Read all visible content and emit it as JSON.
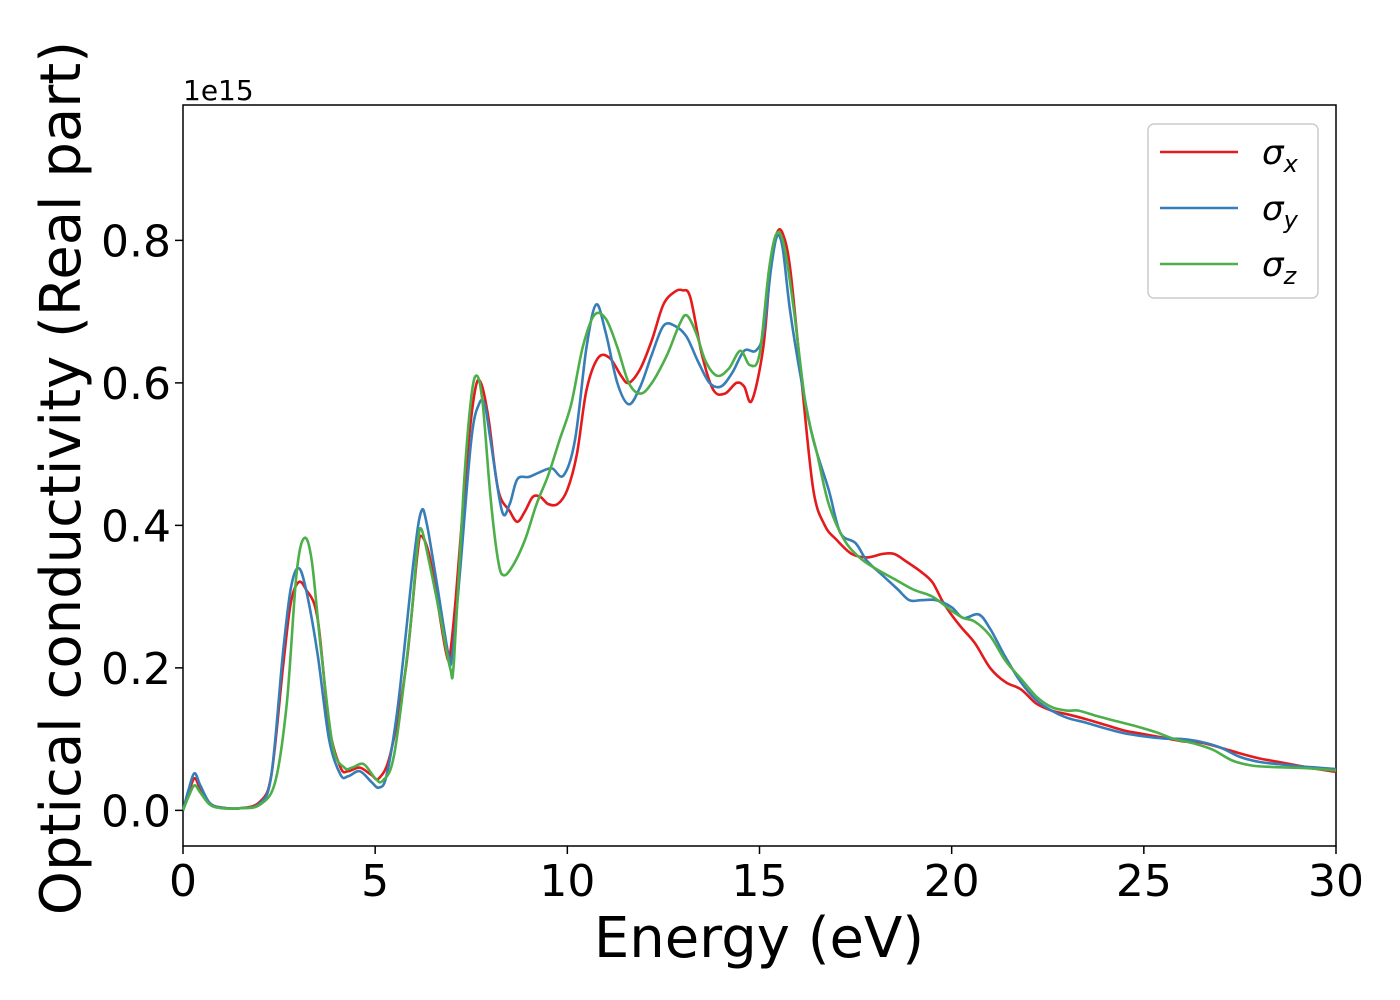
{
  "chart_data": {
    "type": "line",
    "xlabel": "Energy (eV)",
    "ylabel": "Optical conductivity (Real part)",
    "y_offset_label": "1e15",
    "xlim": [
      0,
      30
    ],
    "ylim": [
      -0.05,
      0.99
    ],
    "x_ticks": [
      "0",
      "5",
      "10",
      "15",
      "20",
      "25",
      "30"
    ],
    "y_ticks": [
      "0.0",
      "0.2",
      "0.4",
      "0.6",
      "0.8"
    ],
    "grid": false,
    "legend_position": "top-right",
    "series": [
      {
        "name": "σx",
        "symbol": "σ",
        "sub": "x",
        "color": "#e41a1c",
        "points": [
          [
            0,
            0.0
          ],
          [
            0.15,
            0.025
          ],
          [
            0.3,
            0.045
          ],
          [
            0.45,
            0.03
          ],
          [
            0.7,
            0.01
          ],
          [
            1,
            0.004
          ],
          [
            1.5,
            0.003
          ],
          [
            2,
            0.012
          ],
          [
            2.3,
            0.05
          ],
          [
            2.6,
            0.2
          ],
          [
            2.8,
            0.29
          ],
          [
            3.0,
            0.32
          ],
          [
            3.2,
            0.31
          ],
          [
            3.5,
            0.27
          ],
          [
            3.8,
            0.12
          ],
          [
            4.1,
            0.06
          ],
          [
            4.3,
            0.055
          ],
          [
            4.6,
            0.06
          ],
          [
            4.9,
            0.05
          ],
          [
            5.1,
            0.045
          ],
          [
            5.4,
            0.08
          ],
          [
            5.8,
            0.2
          ],
          [
            6.1,
            0.36
          ],
          [
            6.2,
            0.385
          ],
          [
            6.4,
            0.36
          ],
          [
            6.6,
            0.3
          ],
          [
            6.85,
            0.22
          ],
          [
            6.95,
            0.22
          ],
          [
            7.1,
            0.3
          ],
          [
            7.4,
            0.5
          ],
          [
            7.6,
            0.59
          ],
          [
            7.75,
            0.6
          ],
          [
            7.95,
            0.55
          ],
          [
            8.2,
            0.45
          ],
          [
            8.5,
            0.42
          ],
          [
            8.7,
            0.405
          ],
          [
            8.9,
            0.42
          ],
          [
            9.1,
            0.44
          ],
          [
            9.3,
            0.44
          ],
          [
            9.5,
            0.43
          ],
          [
            9.75,
            0.43
          ],
          [
            10,
            0.45
          ],
          [
            10.25,
            0.5
          ],
          [
            10.5,
            0.59
          ],
          [
            10.8,
            0.635
          ],
          [
            11.1,
            0.635
          ],
          [
            11.4,
            0.61
          ],
          [
            11.6,
            0.6
          ],
          [
            11.9,
            0.62
          ],
          [
            12.2,
            0.66
          ],
          [
            12.5,
            0.71
          ],
          [
            12.8,
            0.728
          ],
          [
            13.0,
            0.73
          ],
          [
            13.2,
            0.72
          ],
          [
            13.5,
            0.64
          ],
          [
            13.8,
            0.59
          ],
          [
            14.1,
            0.585
          ],
          [
            14.4,
            0.6
          ],
          [
            14.6,
            0.595
          ],
          [
            14.8,
            0.575
          ],
          [
            15.1,
            0.65
          ],
          [
            15.3,
            0.77
          ],
          [
            15.45,
            0.81
          ],
          [
            15.6,
            0.81
          ],
          [
            15.8,
            0.76
          ],
          [
            16.1,
            0.6
          ],
          [
            16.4,
            0.45
          ],
          [
            16.7,
            0.4
          ],
          [
            17,
            0.38
          ],
          [
            17.4,
            0.36
          ],
          [
            17.8,
            0.355
          ],
          [
            18.2,
            0.36
          ],
          [
            18.5,
            0.36
          ],
          [
            18.8,
            0.35
          ],
          [
            19.2,
            0.335
          ],
          [
            19.5,
            0.32
          ],
          [
            19.8,
            0.29
          ],
          [
            20.2,
            0.26
          ],
          [
            20.6,
            0.235
          ],
          [
            21,
            0.2
          ],
          [
            21.4,
            0.18
          ],
          [
            21.8,
            0.17
          ],
          [
            22.2,
            0.15
          ],
          [
            22.6,
            0.14
          ],
          [
            23,
            0.135
          ],
          [
            23.5,
            0.128
          ],
          [
            24,
            0.12
          ],
          [
            24.5,
            0.112
          ],
          [
            25,
            0.107
          ],
          [
            25.5,
            0.102
          ],
          [
            26,
            0.097
          ],
          [
            26.5,
            0.095
          ],
          [
            27,
            0.088
          ],
          [
            27.5,
            0.08
          ],
          [
            28,
            0.073
          ],
          [
            28.5,
            0.068
          ],
          [
            29,
            0.063
          ],
          [
            29.5,
            0.058
          ],
          [
            30,
            0.054
          ]
        ]
      },
      {
        "name": "σy",
        "symbol": "σ",
        "sub": "y",
        "color": "#377eb8",
        "points": [
          [
            0,
            0.0
          ],
          [
            0.15,
            0.03
          ],
          [
            0.3,
            0.052
          ],
          [
            0.45,
            0.035
          ],
          [
            0.7,
            0.01
          ],
          [
            1,
            0.004
          ],
          [
            1.5,
            0.003
          ],
          [
            2,
            0.01
          ],
          [
            2.3,
            0.05
          ],
          [
            2.6,
            0.22
          ],
          [
            2.8,
            0.31
          ],
          [
            3.0,
            0.34
          ],
          [
            3.2,
            0.31
          ],
          [
            3.5,
            0.22
          ],
          [
            3.8,
            0.1
          ],
          [
            4.1,
            0.05
          ],
          [
            4.3,
            0.048
          ],
          [
            4.6,
            0.055
          ],
          [
            4.9,
            0.04
          ],
          [
            5.1,
            0.032
          ],
          [
            5.3,
            0.05
          ],
          [
            5.6,
            0.15
          ],
          [
            6.0,
            0.35
          ],
          [
            6.2,
            0.42
          ],
          [
            6.35,
            0.4
          ],
          [
            6.6,
            0.32
          ],
          [
            6.9,
            0.22
          ],
          [
            7.0,
            0.215
          ],
          [
            7.2,
            0.33
          ],
          [
            7.5,
            0.52
          ],
          [
            7.7,
            0.57
          ],
          [
            7.85,
            0.57
          ],
          [
            8.0,
            0.52
          ],
          [
            8.3,
            0.42
          ],
          [
            8.5,
            0.43
          ],
          [
            8.7,
            0.465
          ],
          [
            9.0,
            0.468
          ],
          [
            9.3,
            0.475
          ],
          [
            9.6,
            0.48
          ],
          [
            9.9,
            0.47
          ],
          [
            10.2,
            0.52
          ],
          [
            10.5,
            0.65
          ],
          [
            10.75,
            0.71
          ],
          [
            11.0,
            0.67
          ],
          [
            11.3,
            0.6
          ],
          [
            11.6,
            0.57
          ],
          [
            11.9,
            0.595
          ],
          [
            12.2,
            0.64
          ],
          [
            12.5,
            0.68
          ],
          [
            12.8,
            0.68
          ],
          [
            13.1,
            0.665
          ],
          [
            13.4,
            0.63
          ],
          [
            13.7,
            0.6
          ],
          [
            14.0,
            0.595
          ],
          [
            14.3,
            0.615
          ],
          [
            14.6,
            0.645
          ],
          [
            14.9,
            0.645
          ],
          [
            15.1,
            0.67
          ],
          [
            15.3,
            0.76
          ],
          [
            15.45,
            0.805
          ],
          [
            15.6,
            0.79
          ],
          [
            15.8,
            0.7
          ],
          [
            16.1,
            0.6
          ],
          [
            16.4,
            0.52
          ],
          [
            16.8,
            0.45
          ],
          [
            17.1,
            0.39
          ],
          [
            17.5,
            0.375
          ],
          [
            17.8,
            0.35
          ],
          [
            18.2,
            0.33
          ],
          [
            18.6,
            0.31
          ],
          [
            18.9,
            0.295
          ],
          [
            19.2,
            0.295
          ],
          [
            19.6,
            0.295
          ],
          [
            20,
            0.285
          ],
          [
            20.3,
            0.27
          ],
          [
            20.7,
            0.275
          ],
          [
            21.0,
            0.255
          ],
          [
            21.4,
            0.215
          ],
          [
            21.8,
            0.18
          ],
          [
            22.2,
            0.155
          ],
          [
            22.6,
            0.14
          ],
          [
            23,
            0.13
          ],
          [
            23.5,
            0.123
          ],
          [
            24,
            0.115
          ],
          [
            24.5,
            0.108
          ],
          [
            25,
            0.104
          ],
          [
            25.5,
            0.101
          ],
          [
            26,
            0.1
          ],
          [
            26.5,
            0.096
          ],
          [
            27,
            0.088
          ],
          [
            27.5,
            0.075
          ],
          [
            28,
            0.068
          ],
          [
            28.5,
            0.065
          ],
          [
            29,
            0.062
          ],
          [
            29.5,
            0.06
          ],
          [
            30,
            0.058
          ]
        ]
      },
      {
        "name": "σz",
        "symbol": "σ",
        "sub": "z",
        "color": "#4daf4a",
        "points": [
          [
            0,
            0.0
          ],
          [
            0.15,
            0.02
          ],
          [
            0.3,
            0.035
          ],
          [
            0.45,
            0.025
          ],
          [
            0.7,
            0.008
          ],
          [
            1,
            0.003
          ],
          [
            1.5,
            0.003
          ],
          [
            2,
            0.008
          ],
          [
            2.4,
            0.04
          ],
          [
            2.7,
            0.15
          ],
          [
            2.95,
            0.33
          ],
          [
            3.15,
            0.382
          ],
          [
            3.35,
            0.35
          ],
          [
            3.6,
            0.22
          ],
          [
            3.9,
            0.09
          ],
          [
            4.2,
            0.06
          ],
          [
            4.4,
            0.06
          ],
          [
            4.7,
            0.065
          ],
          [
            5.0,
            0.045
          ],
          [
            5.2,
            0.042
          ],
          [
            5.5,
            0.08
          ],
          [
            5.9,
            0.25
          ],
          [
            6.1,
            0.37
          ],
          [
            6.2,
            0.395
          ],
          [
            6.4,
            0.35
          ],
          [
            6.7,
            0.27
          ],
          [
            6.95,
            0.2
          ],
          [
            7.05,
            0.21
          ],
          [
            7.3,
            0.45
          ],
          [
            7.5,
            0.58
          ],
          [
            7.65,
            0.61
          ],
          [
            7.8,
            0.57
          ],
          [
            8.0,
            0.44
          ],
          [
            8.2,
            0.35
          ],
          [
            8.35,
            0.33
          ],
          [
            8.6,
            0.345
          ],
          [
            8.9,
            0.38
          ],
          [
            9.2,
            0.43
          ],
          [
            9.5,
            0.47
          ],
          [
            9.8,
            0.52
          ],
          [
            10.1,
            0.57
          ],
          [
            10.4,
            0.65
          ],
          [
            10.7,
            0.695
          ],
          [
            11.0,
            0.69
          ],
          [
            11.3,
            0.65
          ],
          [
            11.6,
            0.6
          ],
          [
            11.9,
            0.585
          ],
          [
            12.2,
            0.6
          ],
          [
            12.6,
            0.64
          ],
          [
            12.9,
            0.68
          ],
          [
            13.1,
            0.695
          ],
          [
            13.35,
            0.67
          ],
          [
            13.6,
            0.63
          ],
          [
            13.9,
            0.61
          ],
          [
            14.2,
            0.62
          ],
          [
            14.5,
            0.645
          ],
          [
            14.75,
            0.625
          ],
          [
            15.0,
            0.64
          ],
          [
            15.25,
            0.76
          ],
          [
            15.45,
            0.81
          ],
          [
            15.65,
            0.79
          ],
          [
            15.9,
            0.7
          ],
          [
            16.2,
            0.57
          ],
          [
            16.5,
            0.5
          ],
          [
            16.8,
            0.43
          ],
          [
            17.2,
            0.38
          ],
          [
            17.6,
            0.355
          ],
          [
            18,
            0.34
          ],
          [
            18.5,
            0.325
          ],
          [
            19,
            0.31
          ],
          [
            19.5,
            0.3
          ],
          [
            20,
            0.28
          ],
          [
            20.3,
            0.27
          ],
          [
            20.6,
            0.265
          ],
          [
            21,
            0.245
          ],
          [
            21.4,
            0.21
          ],
          [
            21.8,
            0.185
          ],
          [
            22.2,
            0.16
          ],
          [
            22.6,
            0.145
          ],
          [
            23,
            0.14
          ],
          [
            23.3,
            0.14
          ],
          [
            23.8,
            0.132
          ],
          [
            24.3,
            0.125
          ],
          [
            24.8,
            0.118
          ],
          [
            25.3,
            0.11
          ],
          [
            25.8,
            0.1
          ],
          [
            26.3,
            0.094
          ],
          [
            26.8,
            0.085
          ],
          [
            27.3,
            0.07
          ],
          [
            27.8,
            0.063
          ],
          [
            28.3,
            0.061
          ],
          [
            28.8,
            0.06
          ],
          [
            29.3,
            0.059
          ],
          [
            30,
            0.056
          ]
        ]
      }
    ]
  }
}
